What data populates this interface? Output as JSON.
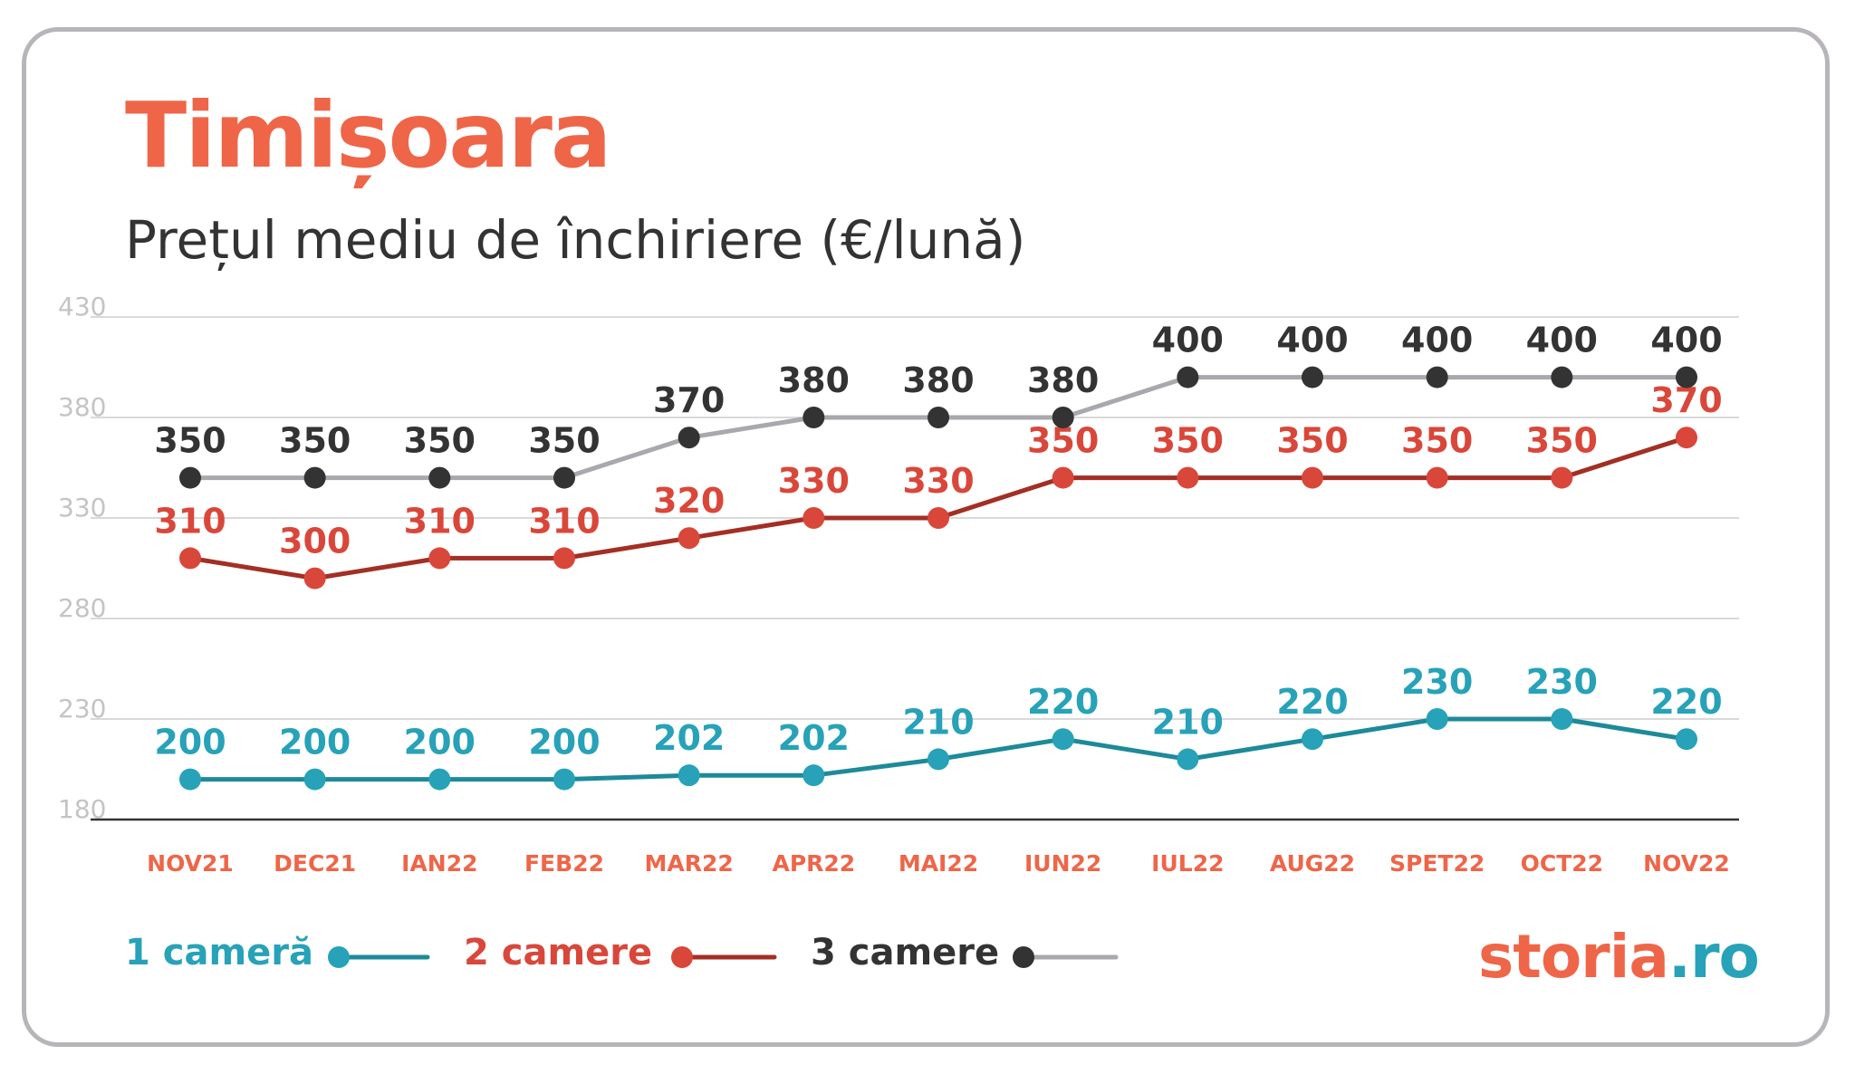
{
  "title": "Timișoara",
  "subtitle": "Prețul mediu de închiriere (€/lună)",
  "logo": {
    "part1": "storia",
    "part2": ".ro"
  },
  "colors": {
    "title": "#ef6548",
    "one_room": "#27a2b8",
    "one_room_line": "#1d8a9a",
    "two_rooms": "#d9473a",
    "two_rooms_line": "#a32f24",
    "three_rooms_marker": "#333333",
    "three_rooms_line": "#aaa7ad",
    "x_labels": "#ef6548",
    "y_labels": "#c4c4c4",
    "grid": "#d9d9d9",
    "axis": "#333333"
  },
  "legend": [
    {
      "label": "1 cameră",
      "series": 0
    },
    {
      "label": "2 camere",
      "series": 1
    },
    {
      "label": "3 camere",
      "series": 2
    }
  ],
  "chart_data": {
    "type": "line",
    "title": "Timișoara",
    "subtitle": "Prețul mediu de închiriere (€/lună)",
    "categories": [
      "NOV21",
      "DEC21",
      "IAN22",
      "FEB22",
      "MAR22",
      "APR22",
      "MAI22",
      "IUN22",
      "IUL22",
      "AUG22",
      "SPET22",
      "OCT22",
      "NOV22"
    ],
    "yticks": [
      180,
      230,
      280,
      330,
      380,
      430
    ],
    "ylim": [
      180,
      430
    ],
    "grid": true,
    "legend_position": "bottom-left",
    "series": [
      {
        "name": "1 cameră",
        "values": [
          200,
          200,
          200,
          200,
          202,
          202,
          210,
          220,
          210,
          220,
          230,
          230,
          220
        ]
      },
      {
        "name": "2 camere",
        "values": [
          310,
          300,
          310,
          310,
          320,
          330,
          330,
          350,
          350,
          350,
          350,
          350,
          370
        ]
      },
      {
        "name": "3 camere",
        "values": [
          350,
          350,
          350,
          350,
          370,
          380,
          380,
          380,
          400,
          400,
          400,
          400,
          400
        ]
      }
    ]
  }
}
